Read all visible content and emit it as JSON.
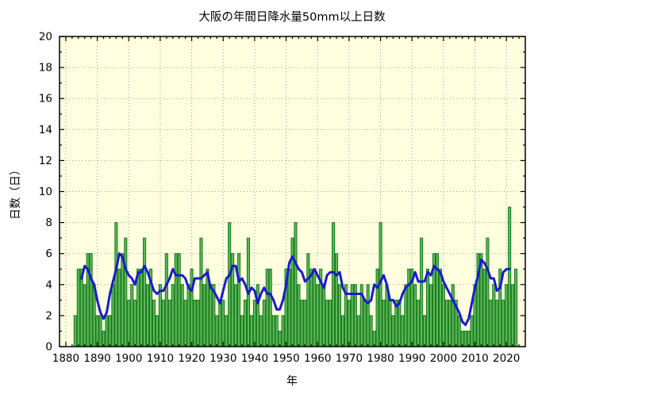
{
  "chart_data": {
    "type": "bar",
    "title": "大阪の年間日降水量50mm以上日数",
    "xlabel": "年",
    "ylabel": "日数（日）",
    "x_start": 1883,
    "x_end": 2023,
    "values": [
      2,
      5,
      5,
      4,
      6,
      6,
      4,
      2,
      2,
      1,
      2,
      2,
      4,
      8,
      5,
      6,
      7,
      3,
      4,
      3,
      5,
      5,
      7,
      4,
      5,
      3,
      2,
      4,
      3,
      6,
      3,
      4,
      6,
      6,
      4,
      3,
      4,
      5,
      3,
      3,
      7,
      4,
      5,
      4,
      4,
      2,
      3,
      3,
      2,
      8,
      6,
      4,
      6,
      2,
      3,
      7,
      2,
      3,
      4,
      2,
      3,
      5,
      5,
      2,
      2,
      1,
      2,
      5,
      5,
      7,
      8,
      4,
      3,
      3,
      6,
      5,
      5,
      4,
      5,
      4,
      3,
      3,
      8,
      6,
      4,
      2,
      4,
      3,
      4,
      4,
      2,
      4,
      3,
      4,
      2,
      1,
      5,
      8,
      3,
      4,
      3,
      2,
      3,
      3,
      2,
      4,
      5,
      5,
      4,
      3,
      7,
      2,
      5,
      4,
      6,
      6,
      5,
      4,
      3,
      3,
      4,
      3,
      2,
      1,
      1,
      1,
      2,
      4,
      6,
      6,
      5,
      7,
      3,
      4,
      3,
      5,
      3,
      4,
      9,
      4,
      5
    ],
    "smoothing_line": "centered 5-year moving average of values (blue line)",
    "ylim": [
      0,
      20
    ],
    "xlim": [
      1878,
      2026
    ],
    "x_major_tick_start": 1880,
    "x_major_tick_end": 2020,
    "x_major_tick_step": 10,
    "x_minor_tick_step": 2,
    "y_major_tick_step": 2,
    "y_minor_tick_step": 1,
    "grid": "dotted, at major ticks",
    "legend": "none",
    "colors": {
      "plot_background": "#FFFFE0",
      "bar_fill": "#5FB75F",
      "bar_edge": "#157A15",
      "line": "#1A1ACC",
      "frame": "#000000"
    }
  }
}
